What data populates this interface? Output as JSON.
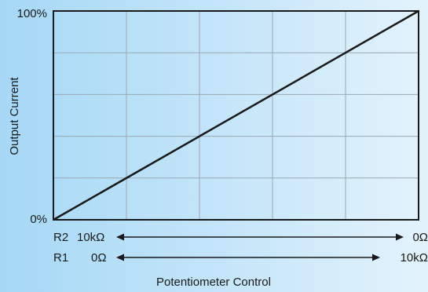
{
  "chart_data": {
    "type": "line",
    "title": "",
    "xlabel": "Potentiometer Control",
    "ylabel": "Output Current",
    "y_tick_labels": {
      "min": "0%",
      "max": "100%"
    },
    "xlim": [
      0,
      100
    ],
    "ylim": [
      0,
      100
    ],
    "grid": true,
    "grid_divisions": {
      "x": 5,
      "y": 5
    },
    "series": [
      {
        "x": [
          0,
          100
        ],
        "y": [
          0,
          100
        ]
      }
    ],
    "scales": [
      {
        "name": "R2",
        "left": "10kΩ",
        "right": "0Ω"
      },
      {
        "name": "R1",
        "left": "0Ω",
        "right": "10kΩ"
      }
    ],
    "colors": {
      "line": "#1a1a1a",
      "grid": "#9aa8b2",
      "frame": "#1a1a1a"
    }
  }
}
